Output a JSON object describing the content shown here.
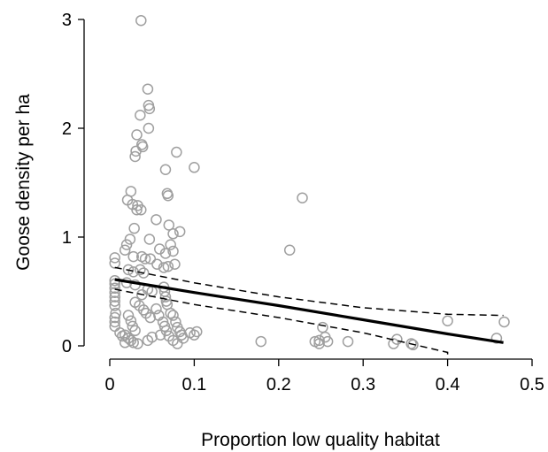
{
  "chart_data": {
    "type": "scatter",
    "title": "",
    "xlabel": "Proportion low quality habitat",
    "ylabel": "Goose density per ha",
    "xlim": [
      0,
      0.5
    ],
    "ylim": [
      0,
      3
    ],
    "xticks": [
      0,
      0.1,
      0.2,
      0.3,
      0.4,
      0.5
    ],
    "xtick_labels": [
      "0",
      "0.1",
      "0.2",
      "0.3",
      "0.4",
      "0.5"
    ],
    "yticks": [
      0,
      1,
      2,
      3
    ],
    "ytick_labels": [
      "0",
      "1",
      "2",
      "3"
    ],
    "grid": false,
    "legend": "none",
    "point_color": "#9f9f9f",
    "line_color": "#000000",
    "points": [
      [
        0.037,
        2.99
      ],
      [
        0.045,
        2.36
      ],
      [
        0.046,
        2.21
      ],
      [
        0.047,
        2.18
      ],
      [
        0.036,
        2.12
      ],
      [
        0.046,
        2.0
      ],
      [
        0.032,
        1.94
      ],
      [
        0.038,
        1.85
      ],
      [
        0.039,
        1.83
      ],
      [
        0.031,
        1.79
      ],
      [
        0.03,
        1.74
      ],
      [
        0.079,
        1.78
      ],
      [
        0.1,
        1.64
      ],
      [
        0.066,
        1.62
      ],
      [
        0.068,
        1.4
      ],
      [
        0.069,
        1.38
      ],
      [
        0.228,
        1.36
      ],
      [
        0.025,
        1.42
      ],
      [
        0.021,
        1.34
      ],
      [
        0.027,
        1.3
      ],
      [
        0.033,
        1.29
      ],
      [
        0.037,
        1.25
      ],
      [
        0.032,
        1.25
      ],
      [
        0.055,
        1.16
      ],
      [
        0.07,
        1.11
      ],
      [
        0.083,
        1.05
      ],
      [
        0.075,
        1.03
      ],
      [
        0.029,
        1.08
      ],
      [
        0.047,
        0.98
      ],
      [
        0.024,
        0.98
      ],
      [
        0.02,
        0.93
      ],
      [
        0.018,
        0.88
      ],
      [
        0.072,
        0.93
      ],
      [
        0.059,
        0.89
      ],
      [
        0.075,
        0.87
      ],
      [
        0.066,
        0.85
      ],
      [
        0.038,
        0.82
      ],
      [
        0.028,
        0.82
      ],
      [
        0.048,
        0.8
      ],
      [
        0.042,
        0.8
      ],
      [
        0.006,
        0.81
      ],
      [
        0.006,
        0.76
      ],
      [
        0.213,
        0.88
      ],
      [
        0.022,
        0.7
      ],
      [
        0.028,
        0.68
      ],
      [
        0.036,
        0.7
      ],
      [
        0.04,
        0.67
      ],
      [
        0.056,
        0.75
      ],
      [
        0.069,
        0.73
      ],
      [
        0.077,
        0.75
      ],
      [
        0.064,
        0.72
      ],
      [
        0.006,
        0.6
      ],
      [
        0.006,
        0.57
      ],
      [
        0.006,
        0.53
      ],
      [
        0.006,
        0.49
      ],
      [
        0.006,
        0.45
      ],
      [
        0.006,
        0.41
      ],
      [
        0.006,
        0.37
      ],
      [
        0.007,
        0.3
      ],
      [
        0.006,
        0.26
      ],
      [
        0.006,
        0.22
      ],
      [
        0.006,
        0.18
      ],
      [
        0.02,
        0.58
      ],
      [
        0.03,
        0.56
      ],
      [
        0.045,
        0.52
      ],
      [
        0.05,
        0.5
      ],
      [
        0.038,
        0.47
      ],
      [
        0.064,
        0.54
      ],
      [
        0.065,
        0.5
      ],
      [
        0.066,
        0.45
      ],
      [
        0.067,
        0.41
      ],
      [
        0.068,
        0.38
      ],
      [
        0.03,
        0.4
      ],
      [
        0.035,
        0.37
      ],
      [
        0.04,
        0.33
      ],
      [
        0.043,
        0.3
      ],
      [
        0.048,
        0.26
      ],
      [
        0.055,
        0.34
      ],
      [
        0.058,
        0.28
      ],
      [
        0.022,
        0.28
      ],
      [
        0.025,
        0.23
      ],
      [
        0.027,
        0.18
      ],
      [
        0.03,
        0.14
      ],
      [
        0.063,
        0.22
      ],
      [
        0.065,
        0.18
      ],
      [
        0.067,
        0.14
      ],
      [
        0.07,
        0.09
      ],
      [
        0.072,
        0.3
      ],
      [
        0.075,
        0.28
      ],
      [
        0.078,
        0.22
      ],
      [
        0.08,
        0.17
      ],
      [
        0.083,
        0.13
      ],
      [
        0.085,
        0.1
      ],
      [
        0.087,
        0.07
      ],
      [
        0.095,
        0.12
      ],
      [
        0.1,
        0.1
      ],
      [
        0.103,
        0.13
      ],
      [
        0.018,
        0.1
      ],
      [
        0.022,
        0.07
      ],
      [
        0.025,
        0.05
      ],
      [
        0.028,
        0.03
      ],
      [
        0.033,
        0.02
      ],
      [
        0.045,
        0.05
      ],
      [
        0.05,
        0.08
      ],
      [
        0.06,
        0.1
      ],
      [
        0.075,
        0.05
      ],
      [
        0.08,
        0.02
      ],
      [
        0.012,
        0.12
      ],
      [
        0.015,
        0.09
      ],
      [
        0.018,
        0.03
      ],
      [
        0.179,
        0.04
      ],
      [
        0.248,
        0.05
      ],
      [
        0.252,
        0.17
      ],
      [
        0.255,
        0.08
      ],
      [
        0.258,
        0.04
      ],
      [
        0.248,
        0.02
      ],
      [
        0.243,
        0.04
      ],
      [
        0.282,
        0.04
      ],
      [
        0.34,
        0.06
      ],
      [
        0.336,
        0.02
      ],
      [
        0.357,
        0.02
      ],
      [
        0.359,
        0.01
      ],
      [
        0.4,
        0.23
      ],
      [
        0.458,
        0.07
      ],
      [
        0.467,
        0.22
      ]
    ],
    "fit_line": {
      "x": [
        0.006,
        0.1,
        0.2,
        0.3,
        0.4,
        0.466
      ],
      "y": [
        0.61,
        0.49,
        0.37,
        0.24,
        0.11,
        0.03
      ]
    },
    "ci_upper": {
      "x": [
        0.006,
        0.1,
        0.2,
        0.3,
        0.4,
        0.466
      ],
      "y": [
        0.72,
        0.58,
        0.45,
        0.35,
        0.29,
        0.28
      ]
    },
    "ci_lower": {
      "x": [
        0.006,
        0.1,
        0.2,
        0.3,
        0.4,
        0.4
      ],
      "y": [
        0.52,
        0.38,
        0.26,
        0.12,
        -0.06,
        -0.11
      ]
    }
  }
}
